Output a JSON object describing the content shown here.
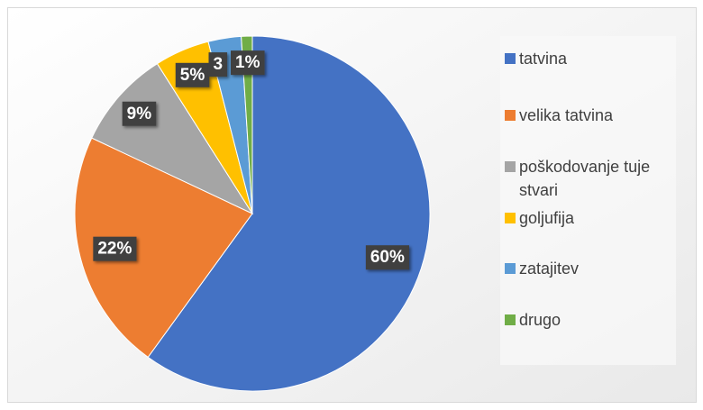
{
  "chart_data": {
    "type": "pie",
    "categories": [
      "tatvina",
      "velika tatvina",
      "poškodovanje tuje stvari",
      "goljufija",
      "zatajitev",
      "drugo"
    ],
    "values": [
      60,
      22,
      9,
      5,
      3,
      1
    ],
    "value_labels": [
      "60%",
      "22%",
      "9%",
      "5%",
      "3",
      "1%"
    ],
    "colors": [
      "#4472c4",
      "#ed7d31",
      "#a5a5a5",
      "#ffc000",
      "#5b9bd5",
      "#70ad47"
    ],
    "legend": "right"
  }
}
